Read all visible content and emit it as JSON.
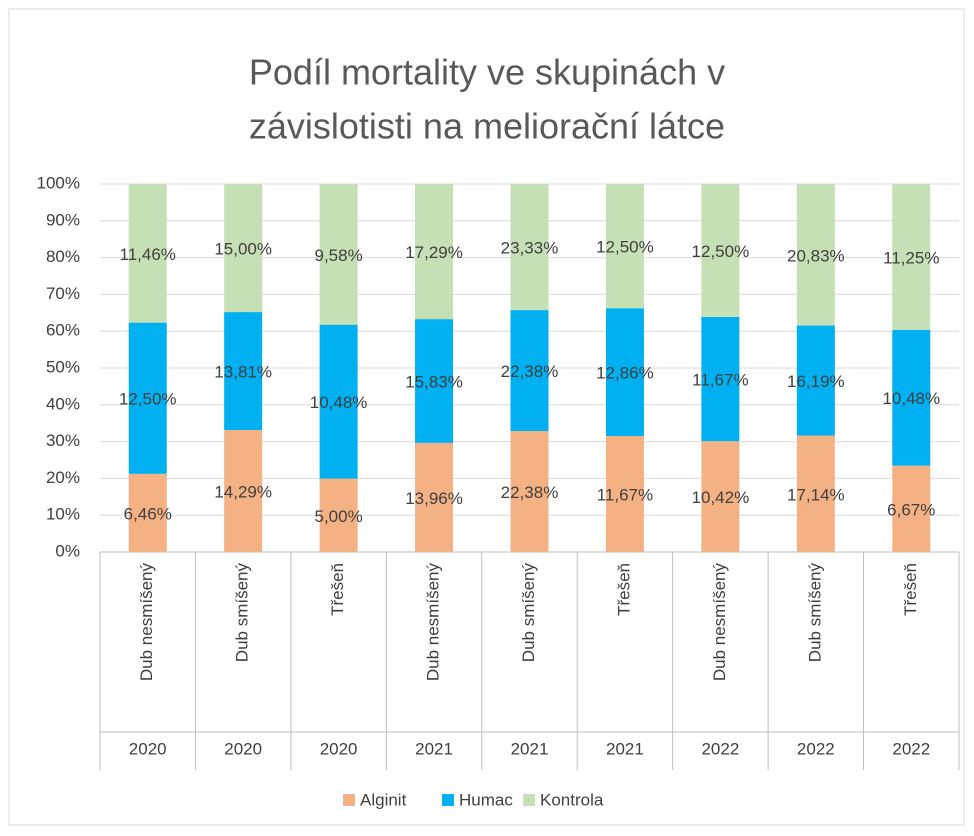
{
  "chart_data": {
    "type": "bar",
    "stacking": "percent",
    "title": [
      "Podíl mortality ve skupinách v",
      "závislotisti na meliorační látce"
    ],
    "categories": [
      "Dub nesmíšený",
      "Dub smíšený",
      "Třešeň",
      "Dub nesmíšený",
      "Dub smíšený",
      "Třešeň",
      "Dub nesmíšený",
      "Dub smíšený",
      "Třešeň"
    ],
    "category_groups": [
      "2020",
      "2020",
      "2020",
      "2021",
      "2021",
      "2021",
      "2022",
      "2022",
      "2022"
    ],
    "series": [
      {
        "name": "Alginit",
        "color": "#f4b183",
        "values": [
          6.46,
          14.29,
          5.0,
          13.96,
          22.38,
          11.67,
          10.42,
          17.14,
          6.67
        ],
        "value_labels": [
          "6,46%",
          "14,29%",
          "5,00%",
          "13,96%",
          "22,38%",
          "11,67%",
          "10,42%",
          "17,14%",
          "6,67%"
        ]
      },
      {
        "name": "Humac",
        "color": "#00b0f0",
        "values": [
          12.5,
          13.81,
          10.48,
          15.83,
          22.38,
          12.86,
          11.67,
          16.19,
          10.48
        ],
        "value_labels": [
          "12,50%",
          "13,81%",
          "10,48%",
          "15,83%",
          "22,38%",
          "12,86%",
          "11,67%",
          "16,19%",
          "10,48%"
        ]
      },
      {
        "name": "Kontrola",
        "color": "#c5e0b4",
        "values": [
          11.46,
          15.0,
          9.58,
          17.29,
          23.33,
          12.5,
          12.5,
          20.83,
          11.25
        ],
        "value_labels": [
          "11,46%",
          "15,00%",
          "9,58%",
          "17,29%",
          "23,33%",
          "12,50%",
          "12,50%",
          "20,83%",
          "11,25%"
        ]
      }
    ],
    "ylim": [
      0,
      100
    ],
    "yticks": [
      {
        "value": 0,
        "label": "0%"
      },
      {
        "value": 10,
        "label": "10%"
      },
      {
        "value": 20,
        "label": "20%"
      },
      {
        "value": 30,
        "label": "30%"
      },
      {
        "value": 40,
        "label": "40%"
      },
      {
        "value": 50,
        "label": "50%"
      },
      {
        "value": 60,
        "label": "60%"
      },
      {
        "value": 70,
        "label": "70%"
      },
      {
        "value": 80,
        "label": "80%"
      },
      {
        "value": 90,
        "label": "90%"
      },
      {
        "value": 100,
        "label": "100%"
      }
    ],
    "grid": true,
    "legend": "bottom"
  }
}
